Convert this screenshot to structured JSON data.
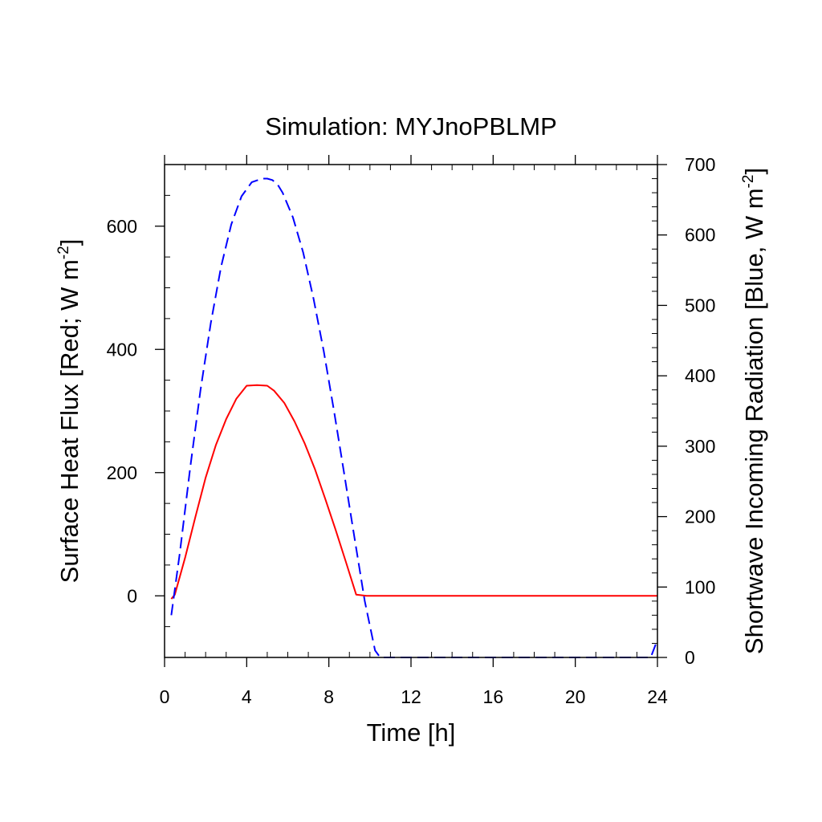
{
  "chart_data": {
    "type": "line",
    "title": "Simulation: MYJnoPBLMP",
    "xlabel": "Time [h]",
    "ylabel_left": {
      "prefix": "Surface Heat Flux [Red; W m",
      "sup": "-2",
      "suffix": "]"
    },
    "ylabel_right": {
      "prefix": "Shortwave Incoming Radiation [Blue, W m",
      "sup": "-2",
      "suffix": "]"
    },
    "xlim": [
      0,
      24
    ],
    "ylim_left": [
      -100,
      700
    ],
    "ylim_right": [
      0,
      700
    ],
    "x_ticks": [
      "0",
      "4",
      "8",
      "12",
      "16",
      "20",
      "24"
    ],
    "y_left_ticks": [
      "0",
      "200",
      "400",
      "600"
    ],
    "y_right_ticks": [
      "0",
      "100",
      "200",
      "300",
      "400",
      "500",
      "600",
      "700"
    ],
    "grid": false,
    "legend": "none",
    "series": [
      {
        "axis": "left",
        "color": "#ff0000",
        "dash": "solid",
        "x": [
          0.33,
          0.5,
          1.0,
          1.5,
          2.0,
          2.5,
          3.0,
          3.5,
          4.0,
          4.5,
          5.0,
          5.33,
          5.83,
          6.33,
          6.83,
          7.33,
          7.83,
          8.33,
          8.83,
          9.33,
          9.83,
          10.0,
          11,
          12,
          13,
          14,
          15,
          16,
          17,
          18,
          19,
          20,
          21,
          22,
          23,
          24
        ],
        "values": [
          -5,
          2,
          62,
          128,
          192,
          245,
          287,
          320,
          341,
          342,
          341,
          333,
          313,
          283,
          247,
          205,
          157,
          107,
          55,
          2,
          0,
          0,
          0,
          0,
          0,
          0,
          0,
          0,
          0,
          0,
          0,
          0,
          0,
          0,
          0,
          0
        ]
      },
      {
        "axis": "right",
        "color": "#0000ff",
        "dash": "dashed",
        "x": [
          0.33,
          0.75,
          1.25,
          1.75,
          2.25,
          2.75,
          3.25,
          3.75,
          4.25,
          4.75,
          5.0,
          5.25,
          5.5,
          5.75,
          6.25,
          6.75,
          7.25,
          7.75,
          8.25,
          8.75,
          9.25,
          9.75,
          10.25,
          10.5,
          11,
          12,
          13,
          14,
          15,
          16,
          17,
          18,
          19,
          20,
          21,
          22,
          23,
          23.67,
          24
        ],
        "values": [
          60,
          150,
          270,
          380,
          475,
          555,
          615,
          655,
          675,
          680,
          680,
          678,
          672,
          660,
          625,
          575,
          510,
          435,
          350,
          260,
          170,
          80,
          10,
          0,
          0,
          0,
          0,
          0,
          0,
          0,
          0,
          0,
          0,
          0,
          0,
          0,
          0,
          0,
          25
        ]
      }
    ]
  }
}
